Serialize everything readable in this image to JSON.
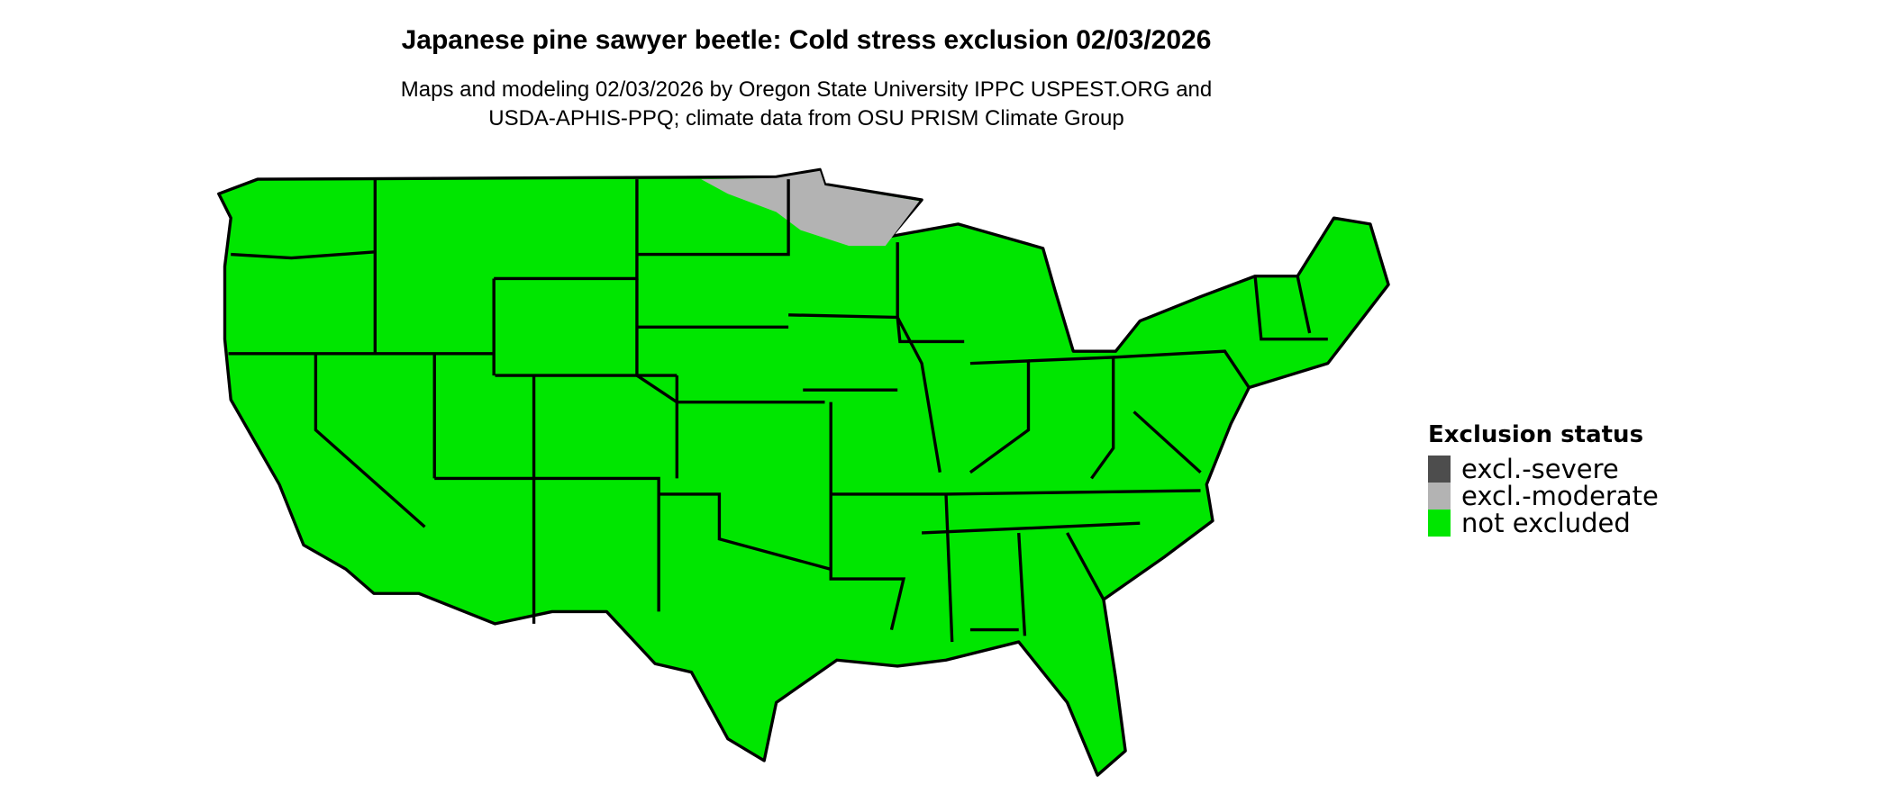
{
  "title": "Japanese pine sawyer beetle: Cold stress exclusion 02/03/2026",
  "subtitle_line1": "Maps and modeling 02/03/2026 by Oregon State University IPPC USPEST.ORG and",
  "subtitle_line2": "USDA-APHIS-PPQ; climate data from OSU PRISM Climate Group",
  "legend": {
    "title": "Exclusion status",
    "items": [
      {
        "label": "excl.-severe",
        "color": "#4d4d4d"
      },
      {
        "label": "excl.-moderate",
        "color": "#b3b3b3"
      },
      {
        "label": "not excluded",
        "color": "#00e600"
      }
    ]
  },
  "map": {
    "region": "contiguous United States",
    "dominant_status": "not excluded",
    "moderate_exclusion_area": "northern Minnesota / northeastern North Dakota border",
    "border_color": "#000000"
  }
}
